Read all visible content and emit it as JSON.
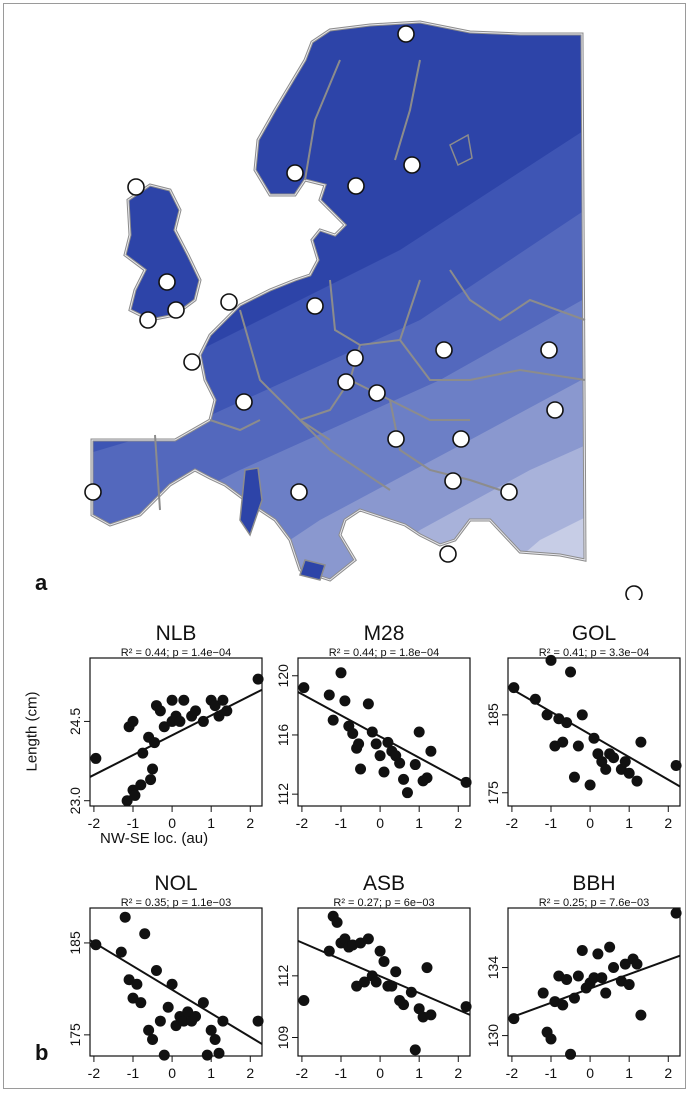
{
  "panel_a_label": "a",
  "panel_b_label": "b",
  "map": {
    "colors": [
      "#2d44a8",
      "#3e55b4",
      "#5368bd",
      "#6c7fc6",
      "#8a98cf",
      "#a8b2da",
      "#c7cde6"
    ],
    "border_color": "#8c8c8c",
    "marker_count": 26
  },
  "y_axis_label": "Length (cm)",
  "x_axis_label": "NW-SE loc. (au)",
  "chart_data": [
    {
      "type": "scatter",
      "title": "NLB",
      "subtitle": "R² = 0.44; p = 1.4e−04",
      "xlim": [
        -2.1,
        2.3
      ],
      "ylim": [
        22.9,
        25.7
      ],
      "xticks": [
        "-2",
        "-1",
        "0",
        "1",
        "2"
      ],
      "yticks": [
        "23.0",
        "24.5"
      ],
      "fit": {
        "x": [
          -2.1,
          2.3
        ],
        "y": [
          23.45,
          25.1
        ]
      },
      "points": {
        "x": [
          -1.95,
          -1.1,
          -1.0,
          -1.15,
          -1.0,
          -0.95,
          -0.8,
          -0.75,
          -0.6,
          -0.55,
          -0.5,
          -0.45,
          -0.4,
          -0.3,
          -0.2,
          0.0,
          0.0,
          0.1,
          0.2,
          0.3,
          0.5,
          0.6,
          0.8,
          1.0,
          1.1,
          1.2,
          1.3,
          1.4,
          2.2
        ],
        "y": [
          23.8,
          24.4,
          24.5,
          23.0,
          23.2,
          23.1,
          23.3,
          23.9,
          24.2,
          23.4,
          23.6,
          24.1,
          24.8,
          24.7,
          24.4,
          24.5,
          24.9,
          24.6,
          24.5,
          24.9,
          24.6,
          24.7,
          24.5,
          24.9,
          24.8,
          24.6,
          24.9,
          24.7,
          25.3
        ]
      }
    },
    {
      "type": "scatter",
      "title": "M28",
      "subtitle": "R² = 0.44; p = 1.8e−04",
      "xlim": [
        -2.1,
        2.3
      ],
      "ylim": [
        111.2,
        121.2
      ],
      "xticks": [
        "-2",
        "-1",
        "0",
        "1",
        "2"
      ],
      "yticks": [
        "112",
        "116",
        "120"
      ],
      "fit": {
        "x": [
          -2.1,
          2.3
        ],
        "y": [
          118.9,
          112.6
        ]
      },
      "points": {
        "x": [
          -1.95,
          -1.3,
          -1.2,
          -1.0,
          -0.9,
          -0.8,
          -0.7,
          -0.6,
          -0.55,
          -0.5,
          -0.3,
          -0.2,
          -0.1,
          0.0,
          0.1,
          0.2,
          0.3,
          0.4,
          0.5,
          0.6,
          0.7,
          0.9,
          1.0,
          1.1,
          1.2,
          1.3,
          2.2
        ],
        "y": [
          119.2,
          118.7,
          117.0,
          120.2,
          118.3,
          116.6,
          116.1,
          115.1,
          115.4,
          113.7,
          118.1,
          116.2,
          115.4,
          114.6,
          113.5,
          115.5,
          114.9,
          114.6,
          114.1,
          113.0,
          112.1,
          114.0,
          116.2,
          112.9,
          113.1,
          114.9,
          112.8
        ]
      }
    },
    {
      "type": "scatter",
      "title": "GOL",
      "subtitle": "R² = 0.41; p = 3.3e−04",
      "xlim": [
        -2.1,
        2.3
      ],
      "ylim": [
        173.3,
        192.3
      ],
      "xticks": [
        "-2",
        "-1",
        "0",
        "1",
        "2"
      ],
      "yticks": [
        "175",
        "185"
      ],
      "fit": {
        "x": [
          -2.1,
          2.3
        ],
        "y": [
          188.6,
          175.8
        ]
      },
      "points": {
        "x": [
          -1.95,
          -1.4,
          -1.1,
          -1.0,
          -0.9,
          -0.8,
          -0.7,
          -0.6,
          -0.5,
          -0.4,
          -0.3,
          -0.2,
          0.0,
          0.1,
          0.2,
          0.3,
          0.4,
          0.5,
          0.6,
          0.8,
          0.9,
          1.0,
          1.2,
          1.3,
          2.2
        ],
        "y": [
          188.5,
          187.0,
          185.0,
          192.0,
          181.0,
          184.5,
          181.5,
          184.0,
          190.5,
          177.0,
          181.0,
          185.0,
          176.0,
          182.0,
          180.0,
          179.0,
          178.0,
          180.0,
          179.5,
          178.0,
          179.0,
          177.5,
          176.5,
          181.5,
          178.5
        ]
      }
    },
    {
      "type": "scatter",
      "title": "NOL",
      "subtitle": "R² = 0.35; p = 1.1e−03",
      "xlim": [
        -2.1,
        2.3
      ],
      "ylim": [
        172.7,
        188.8
      ],
      "xticks": [
        "-2",
        "-1",
        "0",
        "1",
        "2"
      ],
      "yticks": [
        "175",
        "185"
      ],
      "fit": {
        "x": [
          -2.1,
          2.3
        ],
        "y": [
          185.3,
          174.0
        ]
      },
      "points": {
        "x": [
          -1.95,
          -1.3,
          -1.2,
          -1.1,
          -1.0,
          -0.9,
          -0.8,
          -0.7,
          -0.6,
          -0.5,
          -0.4,
          -0.3,
          -0.2,
          -0.1,
          0.0,
          0.1,
          0.2,
          0.3,
          0.4,
          0.5,
          0.6,
          0.8,
          0.9,
          1.0,
          1.1,
          1.2,
          1.3,
          2.2
        ],
        "y": [
          184.8,
          184.0,
          187.8,
          181.0,
          179.0,
          180.5,
          178.5,
          186.0,
          175.5,
          174.5,
          182.0,
          176.5,
          172.8,
          178.0,
          180.5,
          176.0,
          177.0,
          176.5,
          177.5,
          176.5,
          177.0,
          178.5,
          172.8,
          175.5,
          174.5,
          173.0,
          176.5,
          176.5
        ]
      }
    },
    {
      "type": "scatter",
      "title": "ASB",
      "subtitle": "R² = 0.27; p = 6e−03",
      "xlim": [
        -2.1,
        2.3
      ],
      "ylim": [
        108.1,
        115.3
      ],
      "xticks": [
        "-2",
        "-1",
        "0",
        "1",
        "2"
      ],
      "yticks": [
        "109",
        "112"
      ],
      "fit": {
        "x": [
          -2.1,
          2.3
        ],
        "y": [
          113.7,
          110.1
        ]
      },
      "points": {
        "x": [
          -1.95,
          -1.3,
          -1.2,
          -1.1,
          -1.0,
          -0.9,
          -0.8,
          -0.7,
          -0.6,
          -0.5,
          -0.4,
          -0.3,
          -0.2,
          -0.1,
          0.0,
          0.1,
          0.2,
          0.3,
          0.4,
          0.5,
          0.6,
          0.8,
          0.9,
          1.0,
          1.1,
          1.2,
          1.3,
          2.2
        ],
        "y": [
          110.8,
          113.2,
          114.9,
          114.6,
          113.6,
          113.8,
          113.4,
          113.5,
          111.5,
          113.6,
          111.7,
          113.8,
          112.0,
          111.7,
          113.2,
          112.7,
          111.5,
          111.5,
          112.2,
          110.8,
          110.6,
          111.2,
          108.4,
          110.4,
          110.0,
          112.4,
          110.1,
          110.5
        ]
      }
    },
    {
      "type": "scatter",
      "title": "BBH",
      "subtitle": "R² = 0.25; p = 7.6e−03",
      "xlim": [
        -2.1,
        2.3
      ],
      "ylim": [
        128.8,
        137.5
      ],
      "xticks": [
        "-2",
        "-1",
        "0",
        "1",
        "2"
      ],
      "yticks": [
        "130",
        "134"
      ],
      "fit": {
        "x": [
          -2.1,
          2.3
        ],
        "y": [
          131.0,
          134.7
        ]
      },
      "points": {
        "x": [
          -1.95,
          -1.2,
          -1.1,
          -1.0,
          -0.9,
          -0.8,
          -0.7,
          -0.6,
          -0.5,
          -0.4,
          -0.3,
          -0.2,
          -0.1,
          0.0,
          0.1,
          0.2,
          0.3,
          0.4,
          0.5,
          0.6,
          0.8,
          0.9,
          1.0,
          1.1,
          1.2,
          1.3,
          2.2
        ],
        "y": [
          131.0,
          132.5,
          130.2,
          129.8,
          132.0,
          133.5,
          131.8,
          133.3,
          128.9,
          132.2,
          133.5,
          135.0,
          132.8,
          133.1,
          133.4,
          134.8,
          133.4,
          132.5,
          135.2,
          134.0,
          133.2,
          134.2,
          133.0,
          134.5,
          134.2,
          131.2,
          137.2
        ]
      }
    }
  ]
}
